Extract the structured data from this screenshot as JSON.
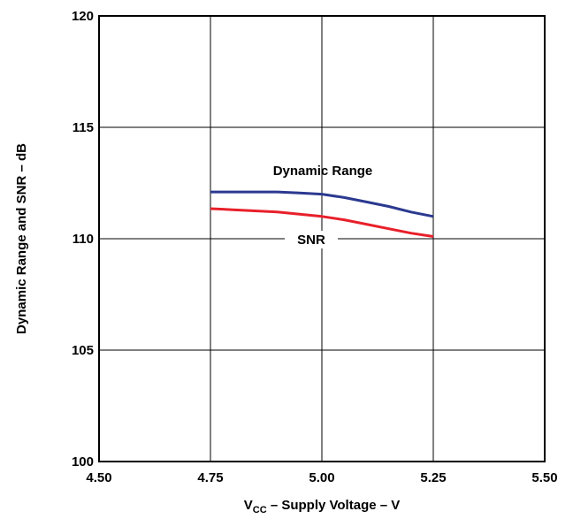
{
  "chart_data": {
    "type": "line",
    "xlabel_parts": {
      "main": "V",
      "sub": "CC",
      "rest": " – Supply Voltage – V"
    },
    "ylabel": "Dynamic Range and SNR – dB",
    "xlim": [
      4.5,
      5.5
    ],
    "ylim": [
      100,
      120
    ],
    "x_ticks": [
      "4.50",
      "4.75",
      "5.00",
      "5.25",
      "5.50"
    ],
    "y_ticks": [
      "100",
      "105",
      "110",
      "115",
      "120"
    ],
    "grid": true,
    "series": [
      {
        "name": "Dynamic Range",
        "color": "#2b3990",
        "x": [
          4.75,
          4.8,
          4.85,
          4.9,
          4.95,
          5.0,
          5.05,
          5.1,
          5.15,
          5.2,
          5.25
        ],
        "values": [
          112.1,
          112.1,
          112.1,
          112.1,
          112.05,
          112.0,
          111.85,
          111.65,
          111.45,
          111.2,
          111.0
        ]
      },
      {
        "name": "SNR",
        "color": "#e8202a",
        "x": [
          4.75,
          4.8,
          4.85,
          4.9,
          4.95,
          5.0,
          5.05,
          5.1,
          5.15,
          5.2,
          5.25
        ],
        "values": [
          111.35,
          111.3,
          111.25,
          111.2,
          111.1,
          111.0,
          110.85,
          110.65,
          110.45,
          110.25,
          110.1
        ]
      }
    ]
  }
}
